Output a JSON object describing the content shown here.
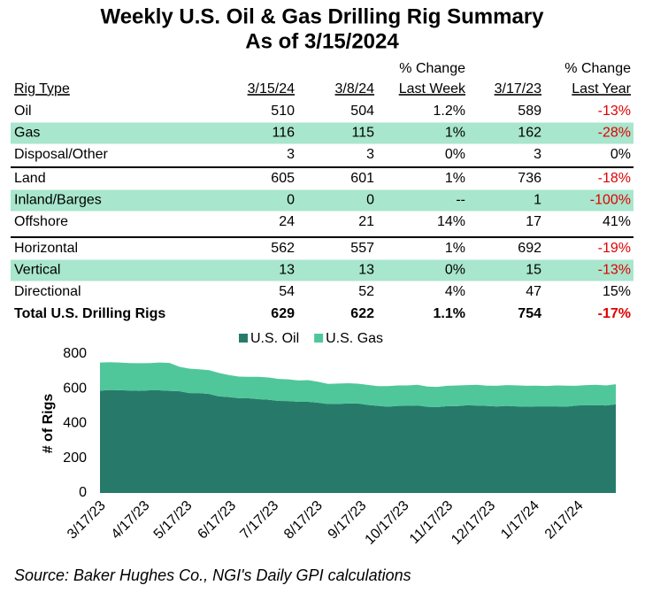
{
  "title": [
    "Weekly U.S. Oil & Gas Drilling Rig Summary",
    "As of 3/15/2024"
  ],
  "table": {
    "header": [
      [
        "Rig Type"
      ],
      [
        "3/15/24"
      ],
      [
        "3/8/24"
      ],
      [
        "% Change",
        "Last Week"
      ],
      [
        "3/17/23"
      ],
      [
        "% Change",
        "Last Year"
      ]
    ],
    "groups": [
      [
        [
          "Oil",
          510,
          504,
          "1.2%",
          589,
          "-13%"
        ],
        [
          "Gas",
          116,
          115,
          "1%",
          162,
          "-28%"
        ],
        [
          "Disposal/Other",
          3,
          3,
          "0%",
          3,
          "0%"
        ]
      ],
      [
        [
          "Land",
          605,
          601,
          "1%",
          736,
          "-18%"
        ],
        [
          "Inland/Barges",
          0,
          0,
          "--",
          1,
          "-100%"
        ],
        [
          "Offshore",
          24,
          21,
          "14%",
          17,
          "41%"
        ]
      ],
      [
        [
          "Horizontal",
          562,
          557,
          "1%",
          692,
          "-19%"
        ],
        [
          "Vertical",
          13,
          13,
          "0%",
          15,
          "-13%"
        ],
        [
          "Directional",
          54,
          52,
          "4%",
          47,
          "15%"
        ]
      ]
    ],
    "total": [
      "Total U.S. Drilling Rigs",
      629,
      622,
      "1.1%",
      754,
      "-17%"
    ]
  },
  "chart_data": {
    "type": "area",
    "stacked": true,
    "y_label": "# of Rigs",
    "x": [
      "3/17/23",
      "3/24/23",
      "3/31/23",
      "4/7/23",
      "4/14/23",
      "4/21/23",
      "4/28/23",
      "5/5/23",
      "5/12/23",
      "5/19/23",
      "5/26/23",
      "6/2/23",
      "6/9/23",
      "6/16/23",
      "6/23/23",
      "6/30/23",
      "7/7/23",
      "7/14/23",
      "7/21/23",
      "7/28/23",
      "8/4/23",
      "8/11/23",
      "8/18/23",
      "8/25/23",
      "9/1/23",
      "9/8/23",
      "9/15/23",
      "9/22/23",
      "9/29/23",
      "10/6/23",
      "10/13/23",
      "10/20/23",
      "10/27/23",
      "11/3/23",
      "11/10/23",
      "11/17/23",
      "11/24/23",
      "12/1/23",
      "12/8/23",
      "12/15/23",
      "12/22/23",
      "12/29/23",
      "1/5/24",
      "1/12/24",
      "1/19/24",
      "1/26/24",
      "2/2/24",
      "2/9/24",
      "2/16/24",
      "2/23/24",
      "3/1/24",
      "3/8/24",
      "3/15/24"
    ],
    "xticks": [
      "3/17/23",
      "4/17/23",
      "5/17/23",
      "6/17/23",
      "7/17/23",
      "8/17/23",
      "9/17/23",
      "10/17/23",
      "11/17/23",
      "12/17/23",
      "1/17/24",
      "2/17/24"
    ],
    "ylim": [
      0,
      800
    ],
    "yticks": [
      0,
      200,
      400,
      600,
      800
    ],
    "legend": "top",
    "series": [
      {
        "name": "U.S. Oil",
        "color": "#277a6a",
        "values": [
          589,
          593,
          592,
          590,
          588,
          591,
          591,
          588,
          586,
          575,
          575,
          570,
          556,
          552,
          546,
          545,
          540,
          537,
          530,
          529,
          525,
          525,
          520,
          512,
          513,
          515,
          515,
          507,
          502,
          497,
          501,
          502,
          504,
          496,
          494,
          500,
          500,
          505,
          503,
          501,
          498,
          501,
          499,
          497,
          499,
          499,
          499,
          497,
          503,
          506,
          506,
          504,
          510
        ]
      },
      {
        "name": "U.S. Gas",
        "color": "#4fc79a",
        "values": [
          162,
          160,
          159,
          158,
          159,
          157,
          160,
          161,
          141,
          141,
          137,
          137,
          135,
          127,
          124,
          124,
          129,
          128,
          127,
          125,
          123,
          125,
          120,
          116,
          117,
          117,
          114,
          115,
          113,
          118,
          118,
          117,
          119,
          117,
          117,
          117,
          119,
          116,
          120,
          117,
          119,
          120,
          121,
          120,
          119,
          117,
          120,
          121,
          114,
          115,
          117,
          115,
          116
        ]
      }
    ]
  },
  "source": "Source: Baker Hughes Co., NGI's Daily GPI calculations"
}
